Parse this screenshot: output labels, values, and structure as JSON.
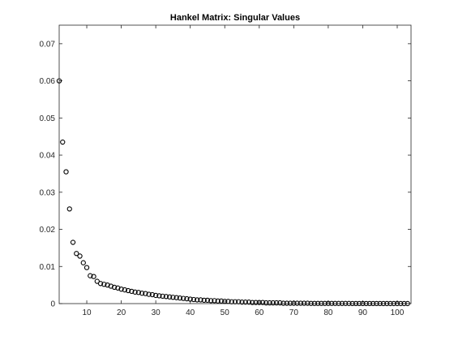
{
  "chart_data": {
    "type": "scatter",
    "title": "Hankel Matrix: Singular Values",
    "xlabel": "",
    "ylabel": "",
    "xlim": [
      2,
      104
    ],
    "ylim": [
      0,
      0.075
    ],
    "grid": false,
    "marker": "open-circle",
    "marker_color": "#000000",
    "x_ticks": [
      10,
      20,
      30,
      40,
      50,
      60,
      70,
      80,
      90,
      100
    ],
    "x_tick_labels": [
      "10",
      "20",
      "30",
      "40",
      "50",
      "60",
      "70",
      "80",
      "90",
      "100"
    ],
    "y_ticks": [
      0,
      0.01,
      0.02,
      0.03,
      0.04,
      0.05,
      0.06,
      0.07
    ],
    "y_tick_labels": [
      "0",
      "0.01",
      "0.02",
      "0.03",
      "0.04",
      "0.05",
      "0.06",
      "0.07"
    ],
    "series": [
      {
        "x": [
          2,
          3,
          4,
          5,
          6,
          7,
          8,
          9,
          10,
          11,
          12,
          13,
          14,
          15,
          16,
          17,
          18,
          19,
          20,
          21,
          22,
          23,
          24,
          25,
          26,
          27,
          28,
          29,
          30,
          31,
          32,
          33,
          34,
          35,
          36,
          37,
          38,
          39,
          40,
          41,
          42,
          43,
          44,
          45,
          46,
          47,
          48,
          49,
          50,
          51,
          52,
          53,
          54,
          55,
          56,
          57,
          58,
          59,
          60,
          61,
          62,
          63,
          64,
          65,
          66,
          67,
          68,
          69,
          70,
          71,
          72,
          73,
          74,
          75,
          76,
          77,
          78,
          79,
          80,
          81,
          82,
          83,
          84,
          85,
          86,
          87,
          88,
          89,
          90,
          91,
          92,
          93,
          94,
          95,
          96,
          97,
          98,
          99,
          100,
          101,
          102,
          103
        ],
        "values": [
          0.06,
          0.0435,
          0.0355,
          0.0255,
          0.0165,
          0.0135,
          0.0128,
          0.011,
          0.0097,
          0.0075,
          0.0073,
          0.006,
          0.0054,
          0.0052,
          0.005,
          0.0047,
          0.0044,
          0.0042,
          0.0039,
          0.0037,
          0.0035,
          0.0033,
          0.0031,
          0.003,
          0.0028,
          0.0027,
          0.0025,
          0.0024,
          0.0022,
          0.0021,
          0.002,
          0.0019,
          0.0018,
          0.0017,
          0.0016,
          0.0015,
          0.0014,
          0.0013,
          0.0012,
          0.0011,
          0.001,
          0.001,
          0.0009,
          0.0009,
          0.0008,
          0.0008,
          0.0007,
          0.0007,
          0.0006,
          0.0006,
          0.0005,
          0.0005,
          0.0005,
          0.0004,
          0.0004,
          0.0004,
          0.0003,
          0.0003,
          0.0003,
          0.0003,
          0.0002,
          0.0002,
          0.0002,
          0.0002,
          0.0002,
          0.0001,
          0.0001,
          0.0001,
          0.0001,
          0.0001,
          0.0001,
          0.0001,
          0.0001,
          5e-05,
          5e-05,
          5e-05,
          5e-05,
          5e-05,
          5e-05,
          5e-05,
          5e-05,
          4e-05,
          4e-05,
          4e-05,
          4e-05,
          3e-05,
          3e-05,
          3e-05,
          3e-05,
          2e-05,
          2e-05,
          2e-05,
          2e-05,
          2e-05,
          1e-05,
          1e-05,
          1e-05,
          1e-05,
          1e-05,
          1e-05,
          1e-05,
          1e-05
        ]
      }
    ]
  }
}
